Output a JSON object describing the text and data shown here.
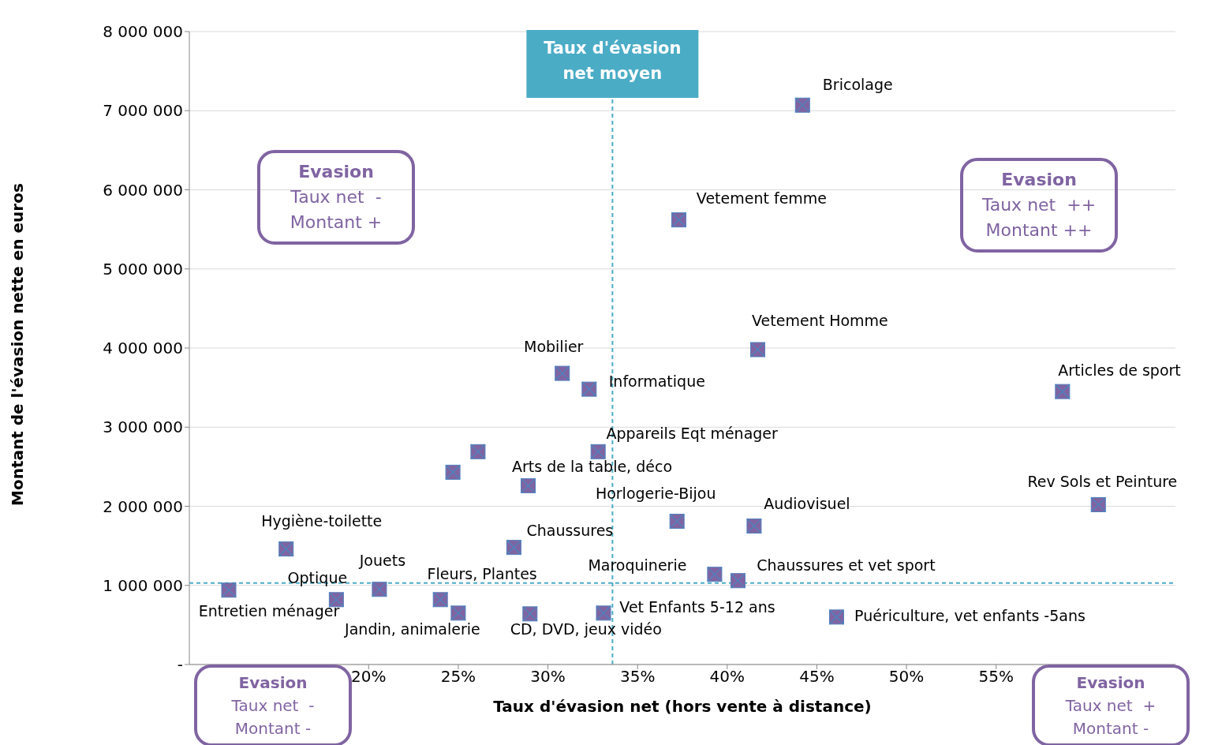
{
  "chart_data": {
    "type": "scatter",
    "xlabel": "Taux d'évasion net (hors vente à distance)",
    "ylabel": "Montant de l'évasion nette en euros",
    "x": [
      44.2,
      37.3,
      41.7,
      58.7,
      60.7,
      30.8,
      32.3,
      32.8,
      26.1,
      24.7,
      28.9,
      37.2,
      41.5,
      15.4,
      28.1,
      39.3,
      40.6,
      12.2,
      18.2,
      20.6,
      24.0,
      25.0,
      29.0,
      33.1,
      46.1
    ],
    "series": [
      {
        "color": "#8064a2",
        "values": [
          7070000,
          5620000,
          3980000,
          3450000,
          2020000,
          3680000,
          3480000,
          2690000,
          2690000,
          2430000,
          2260000,
          1810000,
          1750000,
          1460000,
          1480000,
          1140000,
          1060000,
          940000,
          820000,
          950000,
          820000,
          650000,
          640000,
          650000,
          600000
        ]
      }
    ],
    "marker": "square",
    "grid": "y",
    "legend": false,
    "xlim": [
      10,
      65
    ],
    "xticks": [
      {
        "value": 20,
        "label": "20%"
      },
      {
        "value": 25,
        "label": "25%"
      },
      {
        "value": 30,
        "label": "30%"
      },
      {
        "value": 35,
        "label": "35%"
      },
      {
        "value": 40,
        "label": "40%"
      },
      {
        "value": 45,
        "label": "45%"
      },
      {
        "value": 50,
        "label": "50%"
      },
      {
        "value": 55,
        "label": "55%"
      }
    ],
    "ylim": [
      0,
      8000000
    ],
    "yticks": [
      {
        "value": 0,
        "label": "-"
      },
      {
        "value": 1000000,
        "label": "1 000 000"
      },
      {
        "value": 2000000,
        "label": "2 000 000"
      },
      {
        "value": 3000000,
        "label": "3 000 000"
      },
      {
        "value": 4000000,
        "label": "4 000 000"
      },
      {
        "value": 5000000,
        "label": "5 000 000"
      },
      {
        "value": 6000000,
        "label": "6 000 000"
      },
      {
        "value": 7000000,
        "label": "7 000 000"
      },
      {
        "value": 8000000,
        "label": "8 000 000"
      }
    ],
    "ref_lines": [
      {
        "axis": "x",
        "value": 33.6,
        "label": "Taux d'évasion net moyen",
        "color": "#4bacc6",
        "line_style": "dashed"
      },
      {
        "axis": "y",
        "value": 1030000,
        "color": "#4bacc6",
        "line_style": "dashed"
      }
    ],
    "annotations": [
      {
        "text": "Bricolage",
        "x": 44.2,
        "y": 7070000
      },
      {
        "text": "Vetement femme",
        "x": 37.3,
        "y": 5620000
      },
      {
        "text": "Vetement Homme",
        "x": 41.7,
        "y": 3980000
      },
      {
        "text": "Articles de sport",
        "x": 58.7,
        "y": 3450000
      },
      {
        "text": "Rev  Sols et Peinture",
        "x": 60.7,
        "y": 2020000
      },
      {
        "text": "Mobilier",
        "x": 30.8,
        "y": 3680000
      },
      {
        "text": "Informatique",
        "x": 32.3,
        "y": 3480000
      },
      {
        "text": "Appareils Eqt ménager",
        "x": 32.8,
        "y": 2690000
      },
      {
        "text": "Arts de la table, déco",
        "x": 28.9,
        "y": 2260000
      },
      {
        "text": "Horlogerie-Bijou",
        "x": 37.2,
        "y": 1810000
      },
      {
        "text": "Audiovisuel",
        "x": 41.5,
        "y": 1750000
      },
      {
        "text": "Hygiène-toilette",
        "x": 15.4,
        "y": 1460000
      },
      {
        "text": "Chaussures",
        "x": 28.1,
        "y": 1480000
      },
      {
        "text": "Jouets",
        "x": 20.6,
        "y": 950000
      },
      {
        "text": "Optique",
        "x": 18.2,
        "y": 820000
      },
      {
        "text": "Fleurs, Plantes",
        "x": 24.0,
        "y": 820000
      },
      {
        "text": "Maroquinerie",
        "x": 39.3,
        "y": 1140000
      },
      {
        "text": "Chaussures et vet sport",
        "x": 40.6,
        "y": 1060000
      },
      {
        "text": "Entretien ménager",
        "x": 12.2,
        "y": 940000
      },
      {
        "text": "Jandin, animalerie",
        "x": 25.0,
        "y": 650000
      },
      {
        "text": "CD, DVD, jeux vidéo",
        "x": 29.0,
        "y": 640000
      },
      {
        "text": "Vet Enfants 5-12 ans",
        "x": 33.1,
        "y": 650000
      },
      {
        "text": "Puériculture, vet enfants -5ans",
        "x": 46.1,
        "y": 600000
      },
      "Evasion\nTaux net  -\nMontant +",
      "Evasion\nTaux net  ++\nMontant ++",
      "Evasion\nTaux net  -\nMontant -",
      "Evasion\nTaux net  +\nMontant -"
    ]
  }
}
